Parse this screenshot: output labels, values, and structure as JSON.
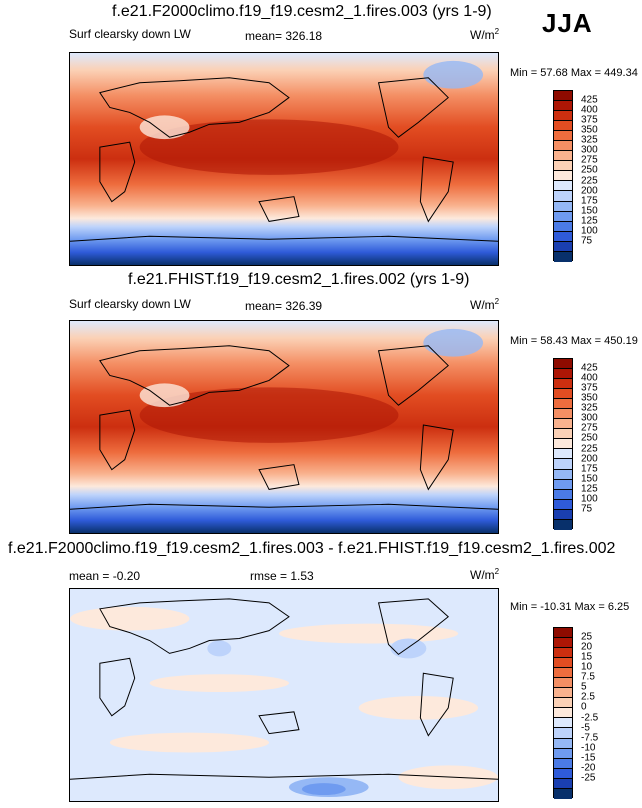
{
  "season": "JJA",
  "colors": {
    "abs": [
      "#08306b",
      "#1a3fb0",
      "#2f5bd9",
      "#4b7be6",
      "#6f9bf0",
      "#95b8f5",
      "#bdd3fb",
      "#dde9fd",
      "#fde9dc",
      "#fbd1b6",
      "#f9b28e",
      "#f48f64",
      "#ee6d3e",
      "#e24d22",
      "#cc2f10",
      "#ad1605",
      "#8e0b00"
    ],
    "diff": [
      "#08306b",
      "#1a3fb0",
      "#2f5bd9",
      "#4b7be6",
      "#6f9bf0",
      "#95b8f5",
      "#bdd3fb",
      "#dde9fd",
      "#fde9dc",
      "#fbd1b6",
      "#f9b28e",
      "#f48f64",
      "#ee6d3e",
      "#e24d22",
      "#cc2f10",
      "#ad1605",
      "#8e0b00"
    ]
  },
  "chart_data": [
    {
      "type": "heatmap",
      "title": "f.e21.F2000climo.f19_f19.cesm2_1.fires.003 (yrs 1-9)",
      "variable": "Surf clearsky down LW",
      "mean_label": "mean= 326.18",
      "units": "W/m",
      "units_sup": "2",
      "minmax": "Min = 57.68 Max = 449.34",
      "colorbar_levels": [
        "425",
        "400",
        "375",
        "350",
        "325",
        "300",
        "275",
        "250",
        "225",
        "200",
        "175",
        "150",
        "125",
        "100",
        "75"
      ]
    },
    {
      "type": "heatmap",
      "title": "f.e21.FHIST.f19_f19.cesm2_1.fires.002 (yrs 1-9)",
      "variable": "Surf clearsky down LW",
      "mean_label": "mean= 326.39",
      "units": "W/m",
      "units_sup": "2",
      "minmax": "Min = 58.43 Max = 450.19",
      "colorbar_levels": [
        "425",
        "400",
        "375",
        "350",
        "325",
        "300",
        "275",
        "250",
        "225",
        "200",
        "175",
        "150",
        "125",
        "100",
        "75"
      ]
    },
    {
      "type": "heatmap",
      "title": "f.e21.F2000climo.f19_f19.cesm2_1.fires.003 - f.e21.FHIST.f19_f19.cesm2_1.fires.002",
      "mean_label": "mean = -0.20",
      "rmse_label": "rmse = 1.53",
      "units": "W/m",
      "units_sup": "2",
      "minmax": "Min = -10.31 Max = 6.25",
      "colorbar_levels": [
        "25",
        "20",
        "15",
        "10",
        "7.5",
        "5",
        "2.5",
        "0",
        "-2.5",
        "-5",
        "-7.5",
        "-10",
        "-15",
        "-20",
        "-25"
      ]
    }
  ]
}
